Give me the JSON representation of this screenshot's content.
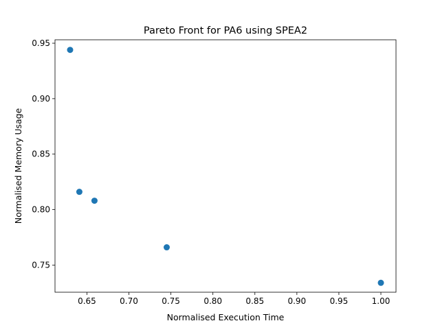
{
  "chart_data": {
    "type": "scatter",
    "title": "Pareto Front for PA6 using SPEA2",
    "xlabel": "Normalised Execution Time",
    "ylabel": "Normalised Memory Usage",
    "xlim": [
      0.612,
      1.018
    ],
    "ylim": [
      0.7255,
      0.9531
    ],
    "xticks": [
      0.65,
      0.7,
      0.75,
      0.8,
      0.85,
      0.9,
      0.95,
      1.0
    ],
    "xtick_labels": [
      "0.65",
      "0.70",
      "0.75",
      "0.80",
      "0.85",
      "0.90",
      "0.95",
      "1.00"
    ],
    "yticks": [
      0.75,
      0.8,
      0.85,
      0.9,
      0.95
    ],
    "ytick_labels": [
      "0.75",
      "0.80",
      "0.85",
      "0.90",
      "0.95"
    ],
    "grid": false,
    "marker_color": "#1f77b4",
    "x": [
      0.63,
      0.641,
      0.659,
      0.745,
      1.0
    ],
    "y": [
      0.944,
      0.816,
      0.808,
      0.766,
      0.734
    ]
  }
}
